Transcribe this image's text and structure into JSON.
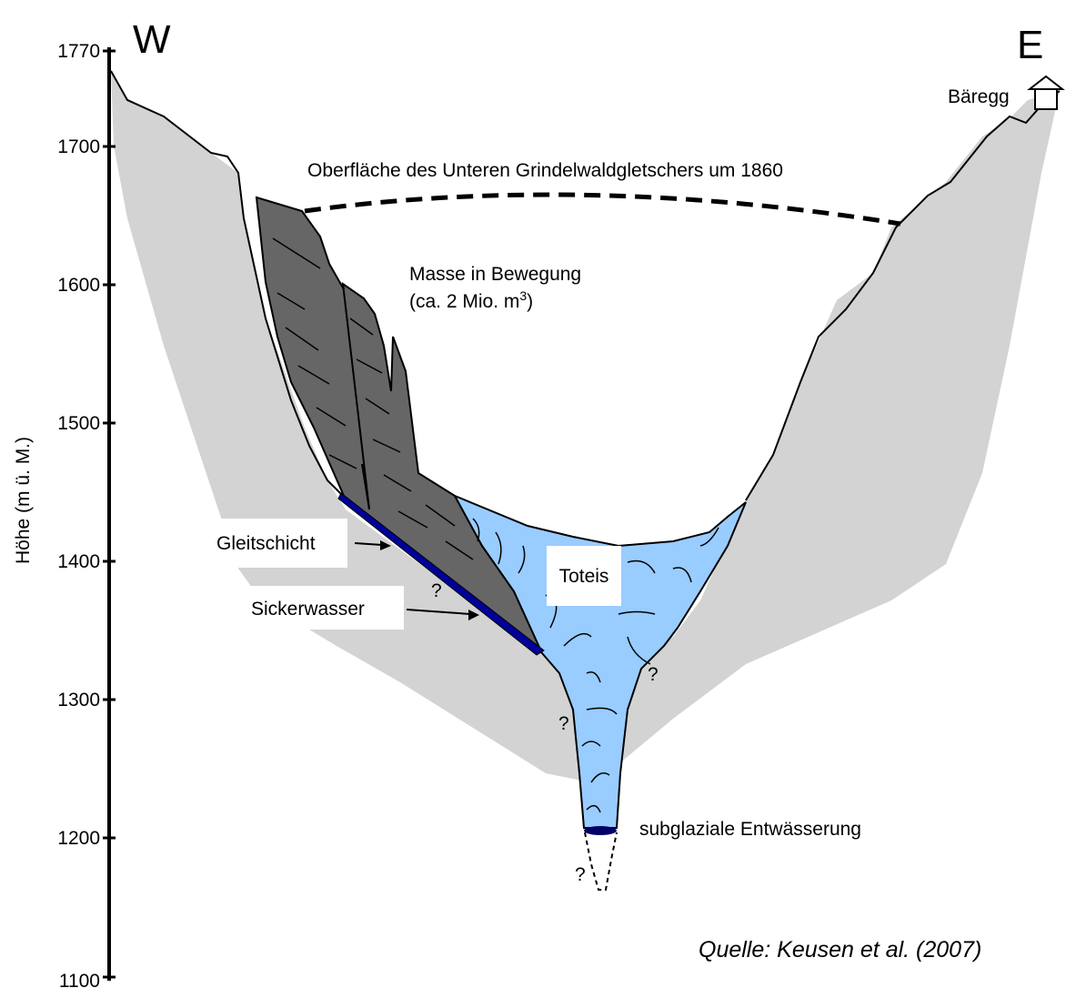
{
  "diagram": {
    "compass_west": "W",
    "compass_east": "E",
    "axis": {
      "label": "Höhe (m ü. M.)",
      "ticks": [
        "1770",
        "1700",
        "1600",
        "1500",
        "1400",
        "1300",
        "1200",
        "1100"
      ]
    },
    "labels": {
      "baeregg": "Bäregg",
      "glacier_surface": "Oberfläche des Unteren Grindelwaldgletschers um 1860",
      "mass_line1": "Masse in Bewegung",
      "mass_line2_prefix": "(ca. 2 Mio. m",
      "mass_line2_sup": "3",
      "mass_line2_suffix": ")",
      "toteis": "Toteis",
      "gleitschicht": "Gleitschicht",
      "sickerwasser": "Sickerwasser",
      "subglacial": "subglaziale Entwässerung",
      "question_mark": "?",
      "source": "Quelle: Keusen et al. (2007)"
    },
    "colors": {
      "rock": "#d3d3d3",
      "moving_mass": "#666666",
      "dead_ice": "#99ccff",
      "slip_layer": "#000099",
      "outline": "#000000"
    }
  }
}
